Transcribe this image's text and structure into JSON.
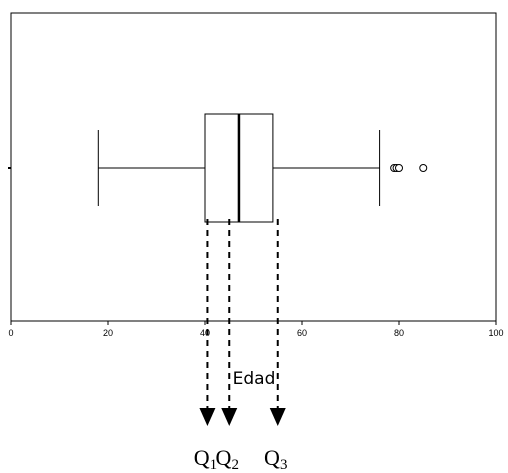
{
  "chart_data": {
    "type": "boxplot",
    "xlabel": "Edad",
    "xlim": [
      0,
      100
    ],
    "x_ticks": [
      0,
      20,
      40,
      60,
      80,
      100
    ],
    "grid": false,
    "whisker_low": 18,
    "q1": 40,
    "median": 47,
    "q3": 54,
    "whisker_high": 76,
    "outliers": [
      79,
      79.5,
      80,
      85
    ],
    "annotations": [
      {
        "base": "Q",
        "sub": "1",
        "x": 40.5
      },
      {
        "base": "Q",
        "sub": "2",
        "x": 45
      },
      {
        "base": "Q",
        "sub": "3",
        "x": 55
      }
    ]
  }
}
